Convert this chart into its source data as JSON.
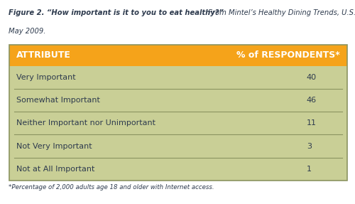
{
  "title_bold": "Figure 2. “How important is it to you to eat healthy?”",
  "title_normal": " From Mintel’s Healthy Dining Trends, U.S.,",
  "title_line2": "May 2009.",
  "footnote": "*Percentage of 2,000 adults age 18 and older with Internet access.",
  "header_col1": "ATTRIBUTE",
  "header_col2": "% of RESPONDENTS*",
  "rows": [
    [
      "Very Important",
      "40"
    ],
    [
      "Somewhat Important",
      "46"
    ],
    [
      "Neither Important nor Unimportant",
      "11"
    ],
    [
      "Not Very Important",
      "3"
    ],
    [
      "Not at All Important",
      "1"
    ]
  ],
  "header_bg": "#F5A31A",
  "table_bg": "#C9CF96",
  "header_text_color": "#FFFFFF",
  "row_text_color": "#2E3B4E",
  "divider_color": "#8B9460",
  "outer_border_color": "#8B9460",
  "title_color": "#2E3B4E",
  "footnote_color": "#2E3B4E",
  "fig_bg": "#FFFFFF"
}
